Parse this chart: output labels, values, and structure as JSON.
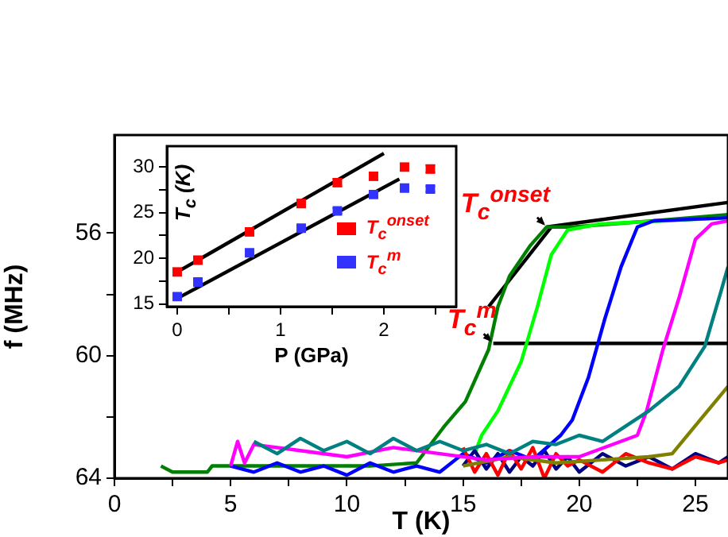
{
  "chart_data": [
    {
      "type": "line",
      "xlabel": "T (K)",
      "ylabel": "f (MHz)",
      "xlim": [
        0,
        26.4
      ],
      "ylim": [
        64,
        52.8
      ],
      "xticks": [
        0,
        {
          "value": 2.5,
          "label": null
        },
        5,
        {
          "value": 7.5,
          "label": null
        },
        10,
        {
          "value": 12.5,
          "label": null
        },
        15,
        {
          "value": 17.5,
          "label": null
        },
        20,
        {
          "value": 22.5,
          "label": null
        },
        25
      ],
      "yticks": [
        56,
        {
          "value": 58,
          "label": null
        },
        60,
        {
          "value": 62,
          "label": null
        },
        64
      ],
      "grid": false,
      "legend": false,
      "line_style": "solid",
      "annotations": [
        {
          "text": "T$_{c}$$^{onset}$",
          "x": 18.6,
          "y": 55.8
        },
        {
          "text": "T$_{c}$$^{m}$",
          "x": 16.3,
          "y": 59.6
        }
      ],
      "series": [
        {
          "color": "#008080",
          "x": [
            6,
            7,
            8,
            9,
            10,
            11,
            12,
            13,
            14,
            15,
            16,
            17,
            18,
            19,
            20,
            21,
            22,
            23,
            24.3,
            25.4,
            26.1,
            26.4
          ],
          "values": [
            62.8,
            63.2,
            62.7,
            63.1,
            62.8,
            63.2,
            62.7,
            63.1,
            62.8,
            63.1,
            62.9,
            63.2,
            62.8,
            62.9,
            62.6,
            62.8,
            62.3,
            61.8,
            61.0,
            59.7,
            57.9,
            57.1
          ]
        },
        {
          "color": "#ff00ff",
          "x": [
            5,
            5.3,
            5.6,
            6,
            8,
            10,
            12,
            14,
            16,
            18,
            20,
            22.5,
            22.9,
            23.6,
            24.3,
            25,
            25.7,
            26.4
          ],
          "values": [
            63.6,
            62.8,
            63.5,
            62.9,
            63.1,
            63.3,
            63.0,
            63.2,
            63.4,
            63.3,
            63.3,
            62.6,
            61.8,
            59.8,
            58.1,
            56.2,
            55.7,
            55.6
          ]
        },
        {
          "color": "#808000",
          "x": [
            15,
            17,
            19,
            21,
            23,
            24,
            25.2,
            26.4
          ],
          "values": [
            63.6,
            63.3,
            63.5,
            63.4,
            63.3,
            63.2,
            62.1,
            61.0
          ]
        },
        {
          "color": "#ff0000",
          "x": [
            15,
            15.5,
            16,
            16.5,
            17,
            17.5,
            18,
            18.5,
            19,
            19.5,
            20,
            21,
            22,
            23,
            24,
            25,
            26,
            26.4
          ],
          "values": [
            63.0,
            63.8,
            63.2,
            63.9,
            63.1,
            63.7,
            63.0,
            64.0,
            63.2,
            63.6,
            63.4,
            63.8,
            63.2,
            63.5,
            63.7,
            63.3,
            63.5,
            63.4
          ]
        },
        {
          "color": "#0000ff",
          "x": [
            5,
            6,
            7,
            8,
            9,
            10,
            11,
            12,
            13,
            14,
            15,
            16,
            17,
            18,
            19.2,
            19.7,
            20.4,
            21.1,
            21.8,
            22.5,
            23.2,
            26.4
          ],
          "values": [
            63.6,
            63.8,
            63.5,
            63.8,
            63.6,
            63.9,
            63.5,
            63.8,
            63.6,
            63.8,
            63.2,
            63.5,
            63.1,
            63.4,
            62.6,
            62.1,
            60.7,
            58.8,
            57.1,
            55.8,
            55.6,
            55.5
          ]
        },
        {
          "color": "#000080",
          "x": [
            15,
            15.5,
            16,
            16.5,
            17,
            17.5,
            18,
            18.5,
            19,
            19.5,
            20,
            21,
            22,
            23,
            24,
            25,
            26,
            26.4
          ],
          "values": [
            63.6,
            63.1,
            63.7,
            63.2,
            63.8,
            63.3,
            63.6,
            63.1,
            63.7,
            63.3,
            63.8,
            63.2,
            63.6,
            63.3,
            63.7,
            63.2,
            63.5,
            63.3
          ]
        },
        {
          "color": "#00ff00",
          "x": [
            15.5,
            15.8,
            16.5,
            17.5,
            18.2,
            18.8,
            19.5,
            20.9,
            26.4
          ],
          "values": [
            63.2,
            62.6,
            61.8,
            60.2,
            58.4,
            56.7,
            55.9,
            55.7,
            55.5
          ]
        },
        {
          "color": "#008000",
          "x": [
            2,
            2.5,
            3,
            4,
            4.2,
            5,
            8,
            11,
            13,
            14.1,
            14.2,
            15.1,
            16.1,
            16.5,
            17,
            17.9,
            18.6,
            19.7,
            23.2,
            26.4
          ],
          "values": [
            63.6,
            63.8,
            63.8,
            63.8,
            63.6,
            63.6,
            63.6,
            63.6,
            63.5,
            62.4,
            62.3,
            61.5,
            59.8,
            58.4,
            57.4,
            56.4,
            55.8,
            55.8,
            55.6,
            55.4
          ]
        },
        {
          "color": "#000000",
          "x": [
            16.1,
            18.8
          ],
          "values": [
            58.4,
            55.8
          ]
        },
        {
          "color": "#000000",
          "x": [
            18.6,
            26.4
          ],
          "values": [
            55.8,
            55.0
          ]
        },
        {
          "color": "#000000",
          "x": [
            16.3,
            26.4
          ],
          "values": [
            59.6,
            59.6
          ]
        }
      ]
    },
    {
      "type": "scatter",
      "xlabel": "P (GPa)",
      "ylabel": "T$_{c}$ (K)",
      "xlim": [
        -0.1,
        2.7
      ],
      "ylim": [
        14.7,
        32.3
      ],
      "xticks": [
        0,
        {
          "value": 0.5,
          "label": null
        },
        1,
        {
          "value": 1.5,
          "label": null
        },
        2,
        {
          "value": 2.5,
          "label": null
        }
      ],
      "yticks": [
        15,
        {
          "value": 17.5,
          "label": null
        },
        20,
        {
          "value": 22.5,
          "label": null
        },
        25,
        {
          "value": 27.5,
          "label": null
        },
        30
      ],
      "grid": false,
      "legend": "bottom right",
      "series": [
        {
          "name": "T$_{c}$$^{onset}$",
          "color": "#ff0000",
          "marker": "square",
          "x": [
            0,
            0.2,
            0.7,
            1.2,
            1.55,
            1.9,
            2.2,
            2.45
          ],
          "values": [
            18.5,
            19.8,
            22.9,
            26.0,
            28.3,
            29.0,
            30.0,
            29.8
          ],
          "errors": [
            0.4,
            0.4,
            0.4,
            0.4,
            0.4,
            0.4,
            0.4,
            0.4
          ]
        },
        {
          "name": "T$_{c}$$^{m}$",
          "color": "#3333ff",
          "marker": "square",
          "x": [
            0,
            0.2,
            0.7,
            1.2,
            1.55,
            1.9,
            2.2,
            2.45
          ],
          "values": [
            15.8,
            17.4,
            20.6,
            23.3,
            25.2,
            27.0,
            27.7,
            27.6
          ],
          "errors": [
            0.3,
            0.3,
            0.3,
            0.3,
            0.3,
            0.3,
            0.3,
            0.3
          ]
        },
        {
          "type": "line",
          "color": "#000000",
          "x": [
            0,
            2.0
          ],
          "values": [
            18.5,
            31.5
          ]
        },
        {
          "type": "line",
          "color": "#000000",
          "x": [
            0,
            2.15
          ],
          "values": [
            15.6,
            28.7
          ]
        }
      ]
    }
  ]
}
